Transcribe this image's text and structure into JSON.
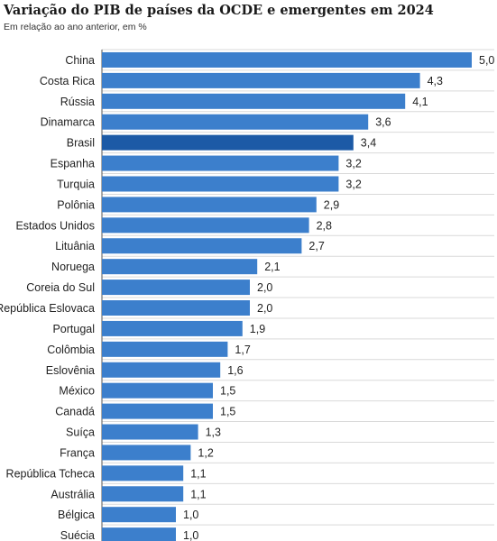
{
  "chart_data": {
    "type": "bar",
    "orientation": "horizontal",
    "title": "Variação do PIB de países da OCDE e emergentes em 2024",
    "subtitle": "Em relação ao ano anterior, em %",
    "categories": [
      "China",
      "Costa Rica",
      "Rússia",
      "Dinamarca",
      "Brasil",
      "Espanha",
      "Turquia",
      "Polônia",
      "Estados Unidos",
      "Lituânia",
      "Noruega",
      "Coreia do Sul",
      "República Eslovaca",
      "Portugal",
      "Colômbia",
      "Eslovênia",
      "México",
      "Canadá",
      "Suíça",
      "França",
      "República Tcheca",
      "Austrália",
      "Bélgica",
      "Suécia"
    ],
    "values": [
      5.0,
      4.3,
      4.1,
      3.6,
      3.4,
      3.2,
      3.2,
      2.9,
      2.8,
      2.7,
      2.1,
      2.0,
      2.0,
      1.9,
      1.7,
      1.6,
      1.5,
      1.5,
      1.3,
      1.2,
      1.1,
      1.1,
      1.0,
      1.0
    ],
    "value_labels": [
      "5,0",
      "4,3",
      "4,1",
      "3,6",
      "3,4",
      "3,2",
      "3,2",
      "2,9",
      "2,8",
      "2,7",
      "2,1",
      "2,0",
      "2,0",
      "1,9",
      "1,7",
      "1,6",
      "1,5",
      "1,5",
      "1,3",
      "1,2",
      "1,1",
      "1,1",
      "1,0",
      "1,0"
    ],
    "highlight": "Brasil",
    "xlim": [
      0,
      5.0
    ],
    "grid": true,
    "colors": {
      "bar": "#3c7fcc",
      "highlight": "#1c5aa6",
      "grid": "#d9d9d9"
    }
  }
}
